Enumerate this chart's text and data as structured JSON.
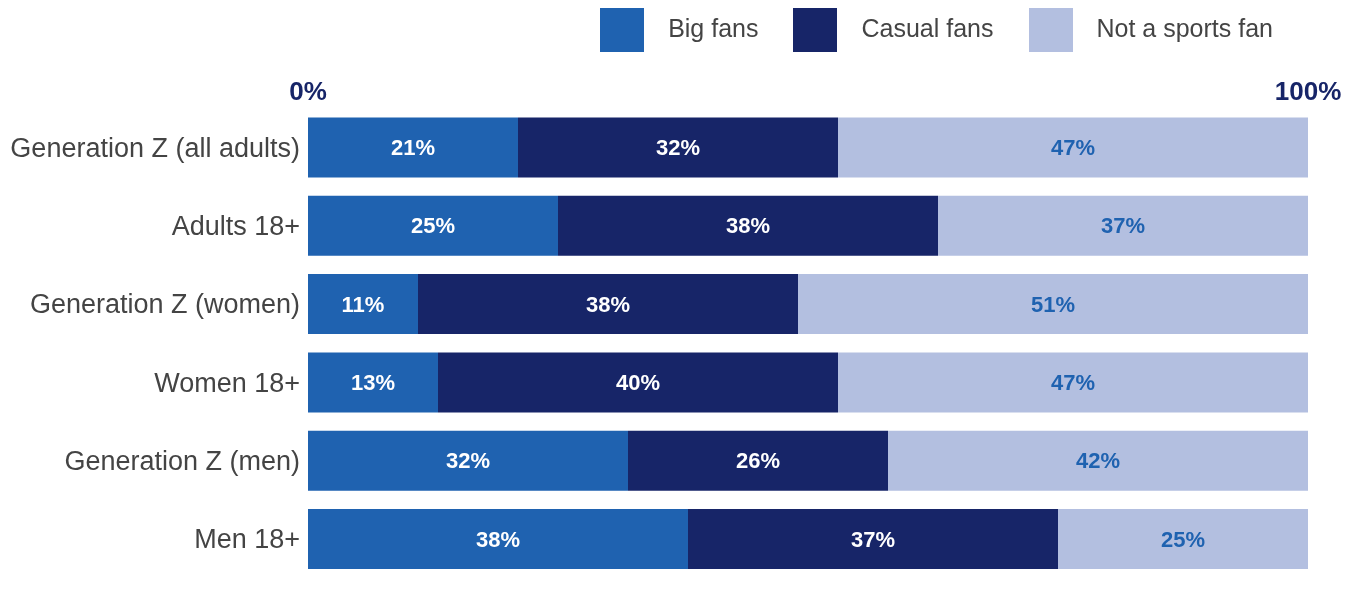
{
  "chart_data": {
    "type": "bar",
    "orientation": "horizontal",
    "stacked": true,
    "categories": [
      "Generation Z (all adults)",
      "Adults 18+",
      "Generation Z (women)",
      "Women 18+",
      "Generation Z (men)",
      "Men 18+"
    ],
    "series": [
      {
        "name": "Big fans",
        "color": "#1f62b0",
        "values": [
          21,
          25,
          11,
          13,
          32,
          38
        ],
        "value_labels": [
          "21%",
          "25%",
          "11%",
          "13%",
          "32%",
          "38%"
        ]
      },
      {
        "name": "Casual fans",
        "color": "#172568",
        "values": [
          32,
          38,
          38,
          40,
          26,
          37
        ],
        "value_labels": [
          "32%",
          "38%",
          "38%",
          "40%",
          "26%",
          "37%"
        ]
      },
      {
        "name": "Not a sports fan",
        "color": "#b3bfe0",
        "values": [
          47,
          37,
          51,
          47,
          42,
          25
        ],
        "value_labels": [
          "47%",
          "37%",
          "51%",
          "47%",
          "42%",
          "25%"
        ]
      }
    ],
    "xlim": [
      0,
      100
    ],
    "xticks": [
      {
        "value": 0,
        "label": "0%"
      },
      {
        "value": 100,
        "label": "100%"
      }
    ],
    "legend": "top right",
    "grid": false
  }
}
